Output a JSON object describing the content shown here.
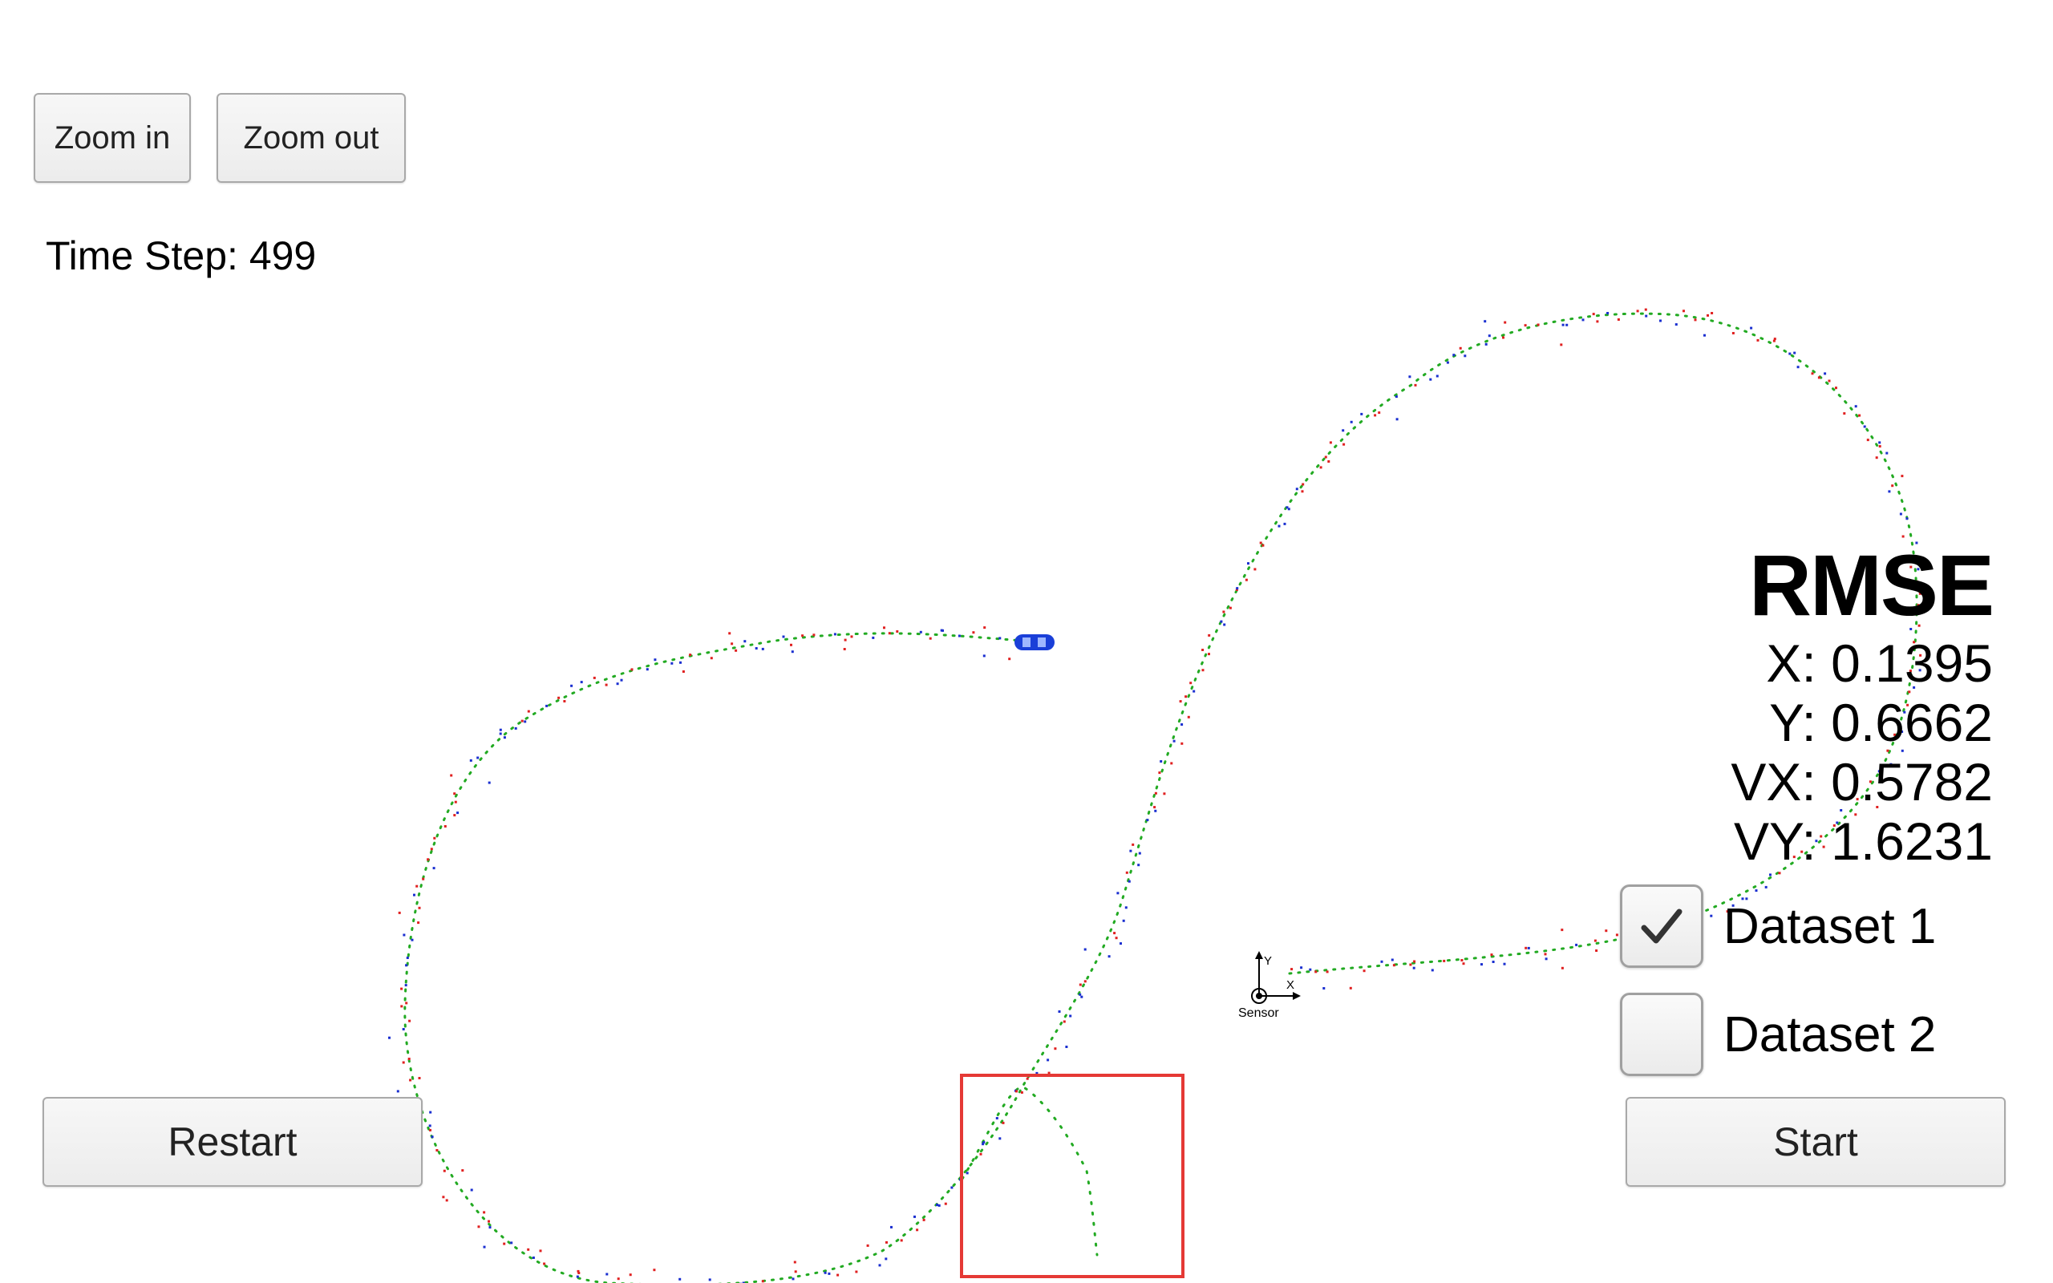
{
  "toolbar": {
    "zoom_in_label": "Zoom in",
    "zoom_out_label": "Zoom out"
  },
  "status": {
    "time_step_label": "Time Step:",
    "time_step_value": "499"
  },
  "rmse": {
    "title": "RMSE",
    "x_label": "X:",
    "x_value": "0.1395",
    "y_label": "Y:",
    "y_value": "0.6662",
    "vx_label": "VX:",
    "vx_value": "0.5782",
    "vy_label": "VY:",
    "vy_value": "1.6231"
  },
  "datasets": [
    {
      "label": "Dataset 1",
      "checked": true
    },
    {
      "label": "Dataset 2",
      "checked": false
    }
  ],
  "controls": {
    "restart_label": "Restart",
    "start_label": "Start"
  },
  "sensor": {
    "label": "Sensor",
    "x_axis": "X",
    "y_axis": "Y"
  },
  "icons": {
    "car": "car-icon",
    "check": "checkmark-icon"
  },
  "colors": {
    "ground_truth": "#22aa22",
    "lidar": "#e02020",
    "radar": "#1a2fd0",
    "car": "#1a3fd8",
    "highlight_box": "#e53935"
  }
}
